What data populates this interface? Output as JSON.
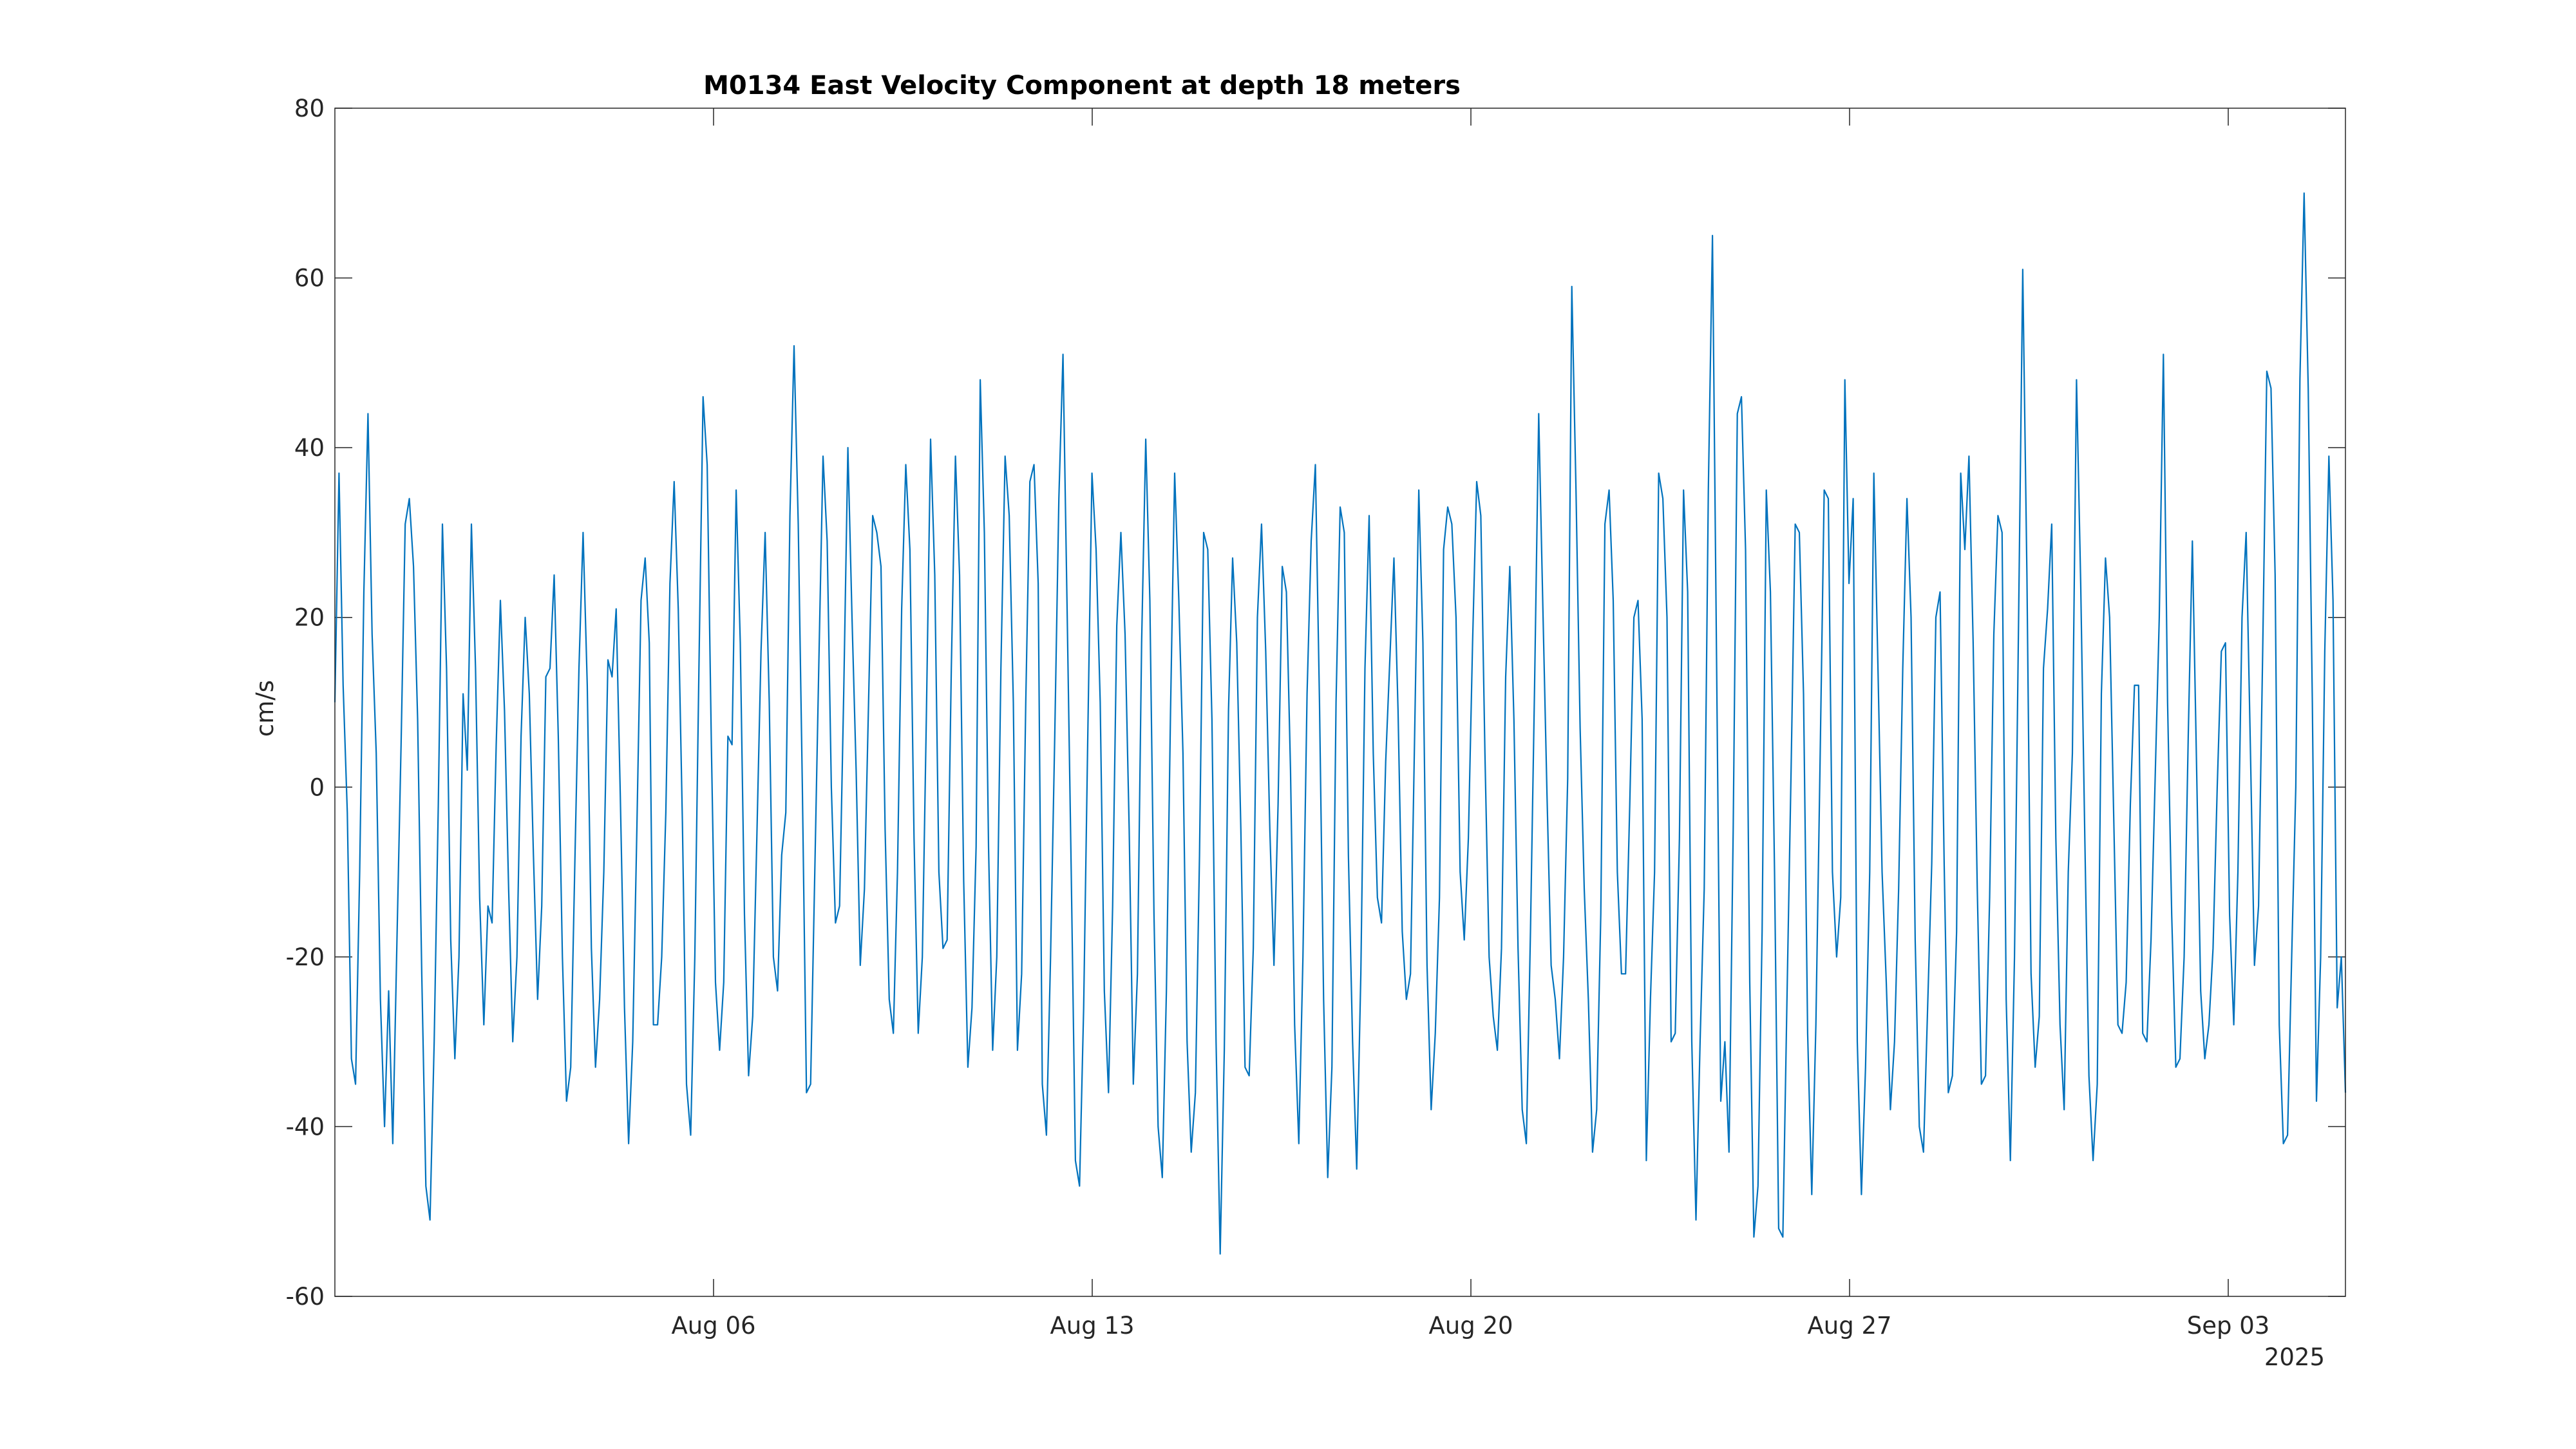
{
  "chart_data": {
    "type": "line",
    "title": "M0134 East Velocity Component at depth 18 meters",
    "xlabel": "",
    "ylabel": "cm/s",
    "x_tick_labels": [
      "Aug 06",
      "Aug 13",
      "Aug 20",
      "Aug 27",
      "Sep 03"
    ],
    "x_tick_dates": [
      "2025-08-06",
      "2025-08-13",
      "2025-08-20",
      "2025-08-27",
      "2025-09-03"
    ],
    "x_secondary_label": "2025",
    "xlim": [
      "2025-07-30T00:00",
      "2025-09-05T04:00"
    ],
    "ylim": [
      -60,
      80
    ],
    "y_ticks": [
      -60,
      -40,
      -20,
      0,
      20,
      40,
      60,
      80
    ],
    "grid": false,
    "line_color": "#0072bd",
    "series": [
      {
        "name": "",
        "x_start": "2025-07-30T00:00",
        "x_end": "2025-09-05T04:00",
        "values": [
          10,
          37,
          12,
          -3,
          -32,
          -35,
          -10,
          23,
          44,
          18,
          4,
          -25,
          -40,
          -24,
          -42,
          -18,
          5,
          31,
          34,
          26,
          8,
          -22,
          -47,
          -51,
          -30,
          -2,
          31,
          14,
          -18,
          -32,
          -20,
          11,
          2,
          31,
          14,
          -13,
          -28,
          -14,
          -16,
          5,
          22,
          9,
          -12,
          -30,
          -20,
          6,
          20,
          11,
          -8,
          -25,
          -14,
          13,
          14,
          25,
          6,
          -20,
          -37,
          -33,
          -9,
          14,
          30,
          12,
          -19,
          -33,
          -25,
          -10,
          15,
          13,
          21,
          -1,
          -26,
          -42,
          -30,
          -5,
          22,
          27,
          17,
          -28,
          -28,
          -20,
          -3,
          24,
          36,
          21,
          -4,
          -35,
          -41,
          -20,
          14,
          46,
          38,
          5,
          -23,
          -31,
          -23,
          6,
          5,
          35,
          17,
          -15,
          -34,
          -27,
          -6,
          16,
          30,
          10,
          -20,
          -24,
          -8,
          -3,
          32,
          52,
          31,
          0,
          -36,
          -35,
          -10,
          15,
          39,
          29,
          0,
          -16,
          -14,
          11,
          40,
          20,
          2,
          -21,
          -12,
          10,
          32,
          30,
          26,
          -5,
          -25,
          -29,
          -10,
          21,
          38,
          28,
          -6,
          -29,
          -20,
          9,
          41,
          25,
          -10,
          -19,
          -18,
          14,
          39,
          25,
          -11,
          -33,
          -26,
          -7,
          48,
          30,
          -7,
          -31,
          -20,
          14,
          39,
          32,
          10,
          -31,
          -22,
          10,
          36,
          38,
          24,
          -35,
          -41,
          -20,
          6,
          34,
          51,
          21,
          -10,
          -44,
          -47,
          -26,
          6,
          37,
          28,
          10,
          -24,
          -36,
          -14,
          19,
          30,
          18,
          -5,
          -35,
          -22,
          17,
          41,
          22,
          -15,
          -40,
          -46,
          -24,
          9,
          37,
          22,
          4,
          -30,
          -43,
          -36,
          -8,
          30,
          28,
          8,
          -30,
          -55,
          -31,
          9,
          27,
          17,
          -5,
          -33,
          -34,
          -19,
          20,
          31,
          16,
          -5,
          -21,
          -2,
          26,
          23,
          2,
          -28,
          -42,
          -20,
          11,
          29,
          38,
          10,
          -25,
          -46,
          -33,
          10,
          33,
          30,
          -8,
          -30,
          -45,
          -22,
          14,
          32,
          4,
          -13,
          -16,
          3,
          15,
          27,
          9,
          -17,
          -25,
          -22,
          6,
          35,
          17,
          -21,
          -38,
          -29,
          -13,
          28,
          33,
          31,
          20,
          -10,
          -18,
          -6,
          17,
          36,
          32,
          4,
          -20,
          -27,
          -31,
          -19,
          13,
          26,
          8,
          -19,
          -38,
          -42,
          -17,
          12,
          44,
          21,
          -1,
          -21,
          -25,
          -32,
          -20,
          1,
          59,
          35,
          7,
          -12,
          -25,
          -43,
          -38,
          -15,
          31,
          35,
          22,
          -10,
          -22,
          -22,
          -2,
          20,
          22,
          8,
          -44,
          -25,
          -10,
          37,
          34,
          20,
          -30,
          -29,
          -6,
          35,
          23,
          -30,
          -51,
          -30,
          -12,
          35,
          65,
          14,
          -37,
          -30,
          -43,
          -5,
          44,
          46,
          28,
          -23,
          -53,
          -47,
          -17,
          35,
          23,
          -10,
          -52,
          -53,
          -25,
          2,
          31,
          30,
          11,
          -29,
          -48,
          -28,
          3,
          35,
          34,
          -10,
          -20,
          -13,
          48,
          24,
          34,
          -30,
          -48,
          -33,
          -10,
          37,
          14,
          -10,
          -23,
          -38,
          -30,
          -12,
          14,
          34,
          20,
          -18,
          -40,
          -43,
          -26,
          -9,
          20,
          23,
          -9,
          -36,
          -34,
          -17,
          37,
          28,
          39,
          17,
          -12,
          -35,
          -34,
          -13,
          18,
          32,
          30,
          -25,
          -44,
          -20,
          20,
          61,
          25,
          -22,
          -33,
          -27,
          14,
          21,
          31,
          -6,
          -28,
          -38,
          -10,
          4,
          48,
          24,
          -6,
          -34,
          -44,
          -35,
          11,
          27,
          20,
          -4,
          -28,
          -29,
          -23,
          -2,
          12,
          12,
          -29,
          -30,
          -18,
          1,
          20,
          51,
          10,
          -15,
          -33,
          -32,
          -20,
          6,
          29,
          3,
          -24,
          -32,
          -28,
          -19,
          0,
          16,
          17,
          -15,
          -28,
          -10,
          20,
          30,
          5,
          -21,
          -14,
          16,
          49,
          47,
          25,
          -28,
          -42,
          -41,
          -20,
          0,
          48,
          70,
          47,
          10,
          -37,
          -20,
          16,
          39,
          22,
          -26,
          -20,
          -36
        ]
      }
    ]
  }
}
